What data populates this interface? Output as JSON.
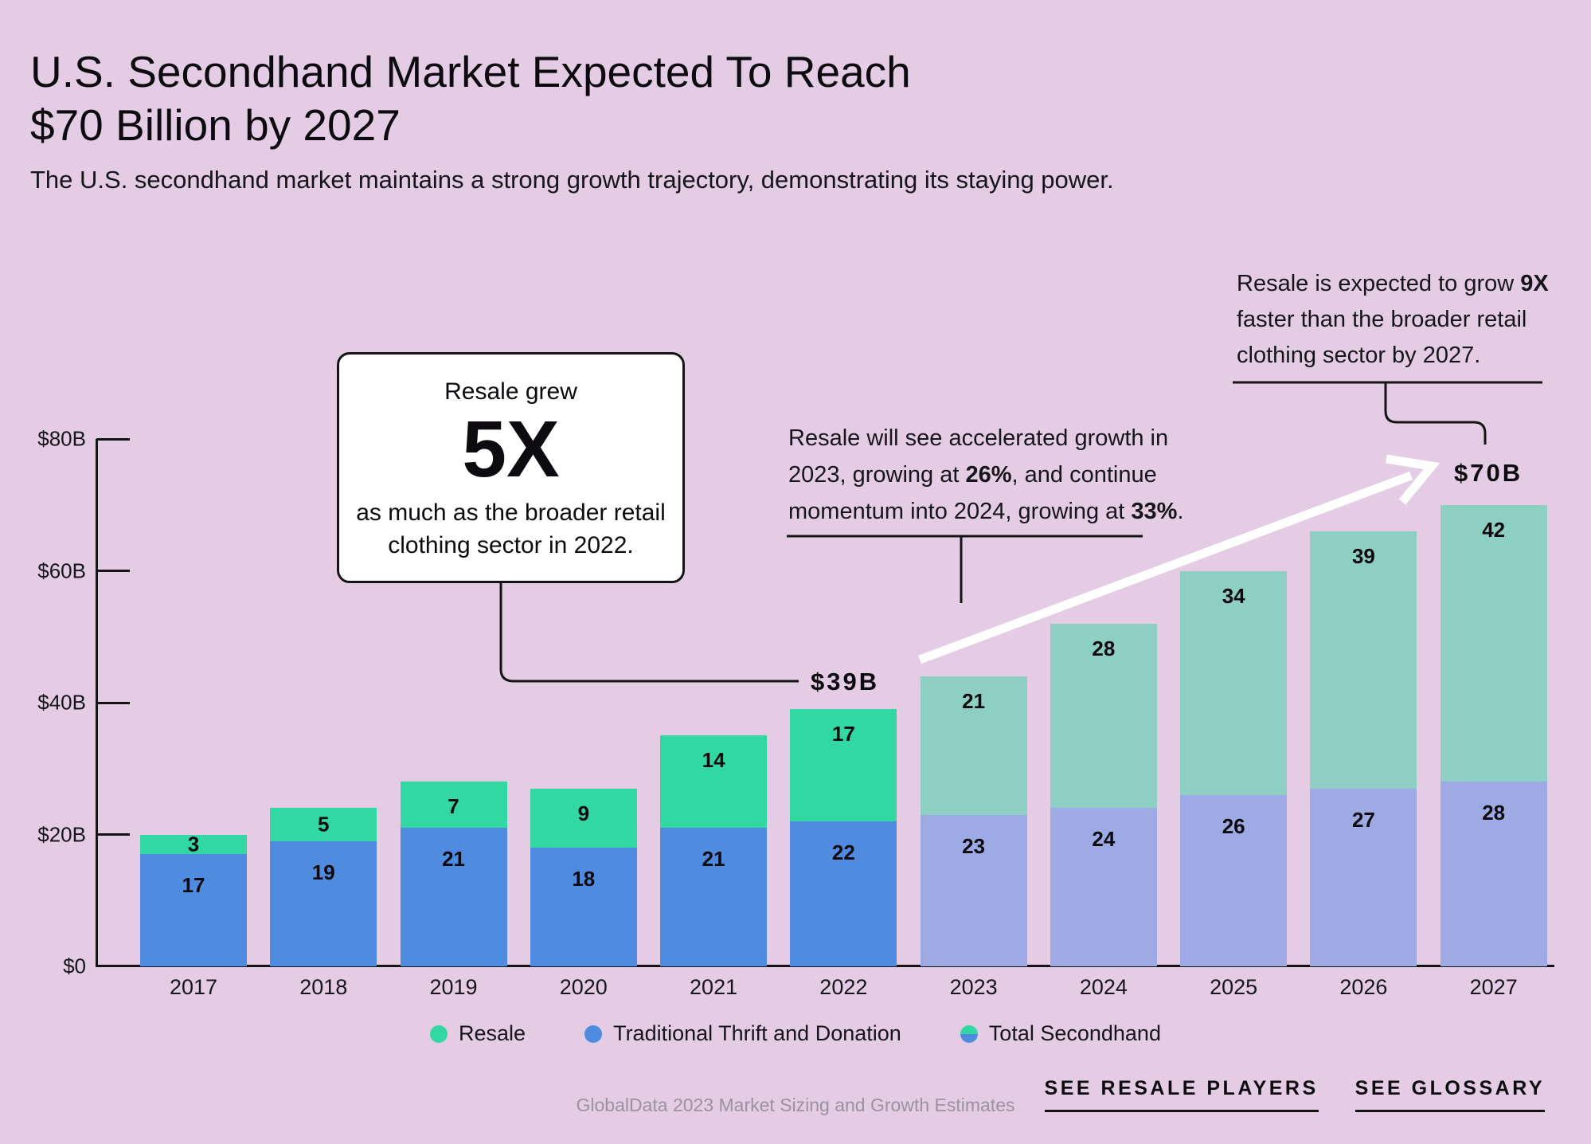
{
  "page": {
    "title_line1": "U.S. Secondhand Market Expected To Reach",
    "title_line2": "$70 Billion by 2027",
    "subtitle": "The U.S. secondhand market maintains a strong growth trajectory, demonstrating its staying power."
  },
  "colors": {
    "background": "#e3cce4",
    "resale": "#31d8a1",
    "thrift": "#4f8cdf",
    "resale_projected": "#8dd0c3",
    "thrift_projected": "#9daae3",
    "axis": "#141414",
    "annotation_box_bg": "#ffffff",
    "arrow": "#ffffff",
    "footer_text": "#9c91a2"
  },
  "chart_data": {
    "type": "bar",
    "stacked": true,
    "title": "U.S. Secondhand Market Expected To Reach $70 Billion by 2027",
    "categories": [
      "2017",
      "2018",
      "2019",
      "2020",
      "2021",
      "2022",
      "2023",
      "2024",
      "2025",
      "2026",
      "2027"
    ],
    "series": [
      {
        "name": "Traditional Thrift and Donation",
        "values": [
          17,
          19,
          21,
          18,
          21,
          22,
          23,
          24,
          26,
          27,
          28
        ]
      },
      {
        "name": "Resale",
        "values": [
          3,
          5,
          7,
          9,
          14,
          17,
          21,
          28,
          34,
          39,
          42
        ]
      }
    ],
    "totals": [
      20,
      24,
      28,
      27,
      35,
      39,
      44,
      52,
      60,
      66,
      70
    ],
    "projected_from": "2023",
    "ylim": [
      0,
      80
    ],
    "y_ticks": [
      {
        "label": "$0",
        "value": 0
      },
      {
        "label": "$20B",
        "value": 20
      },
      {
        "label": "$40B",
        "value": 40
      },
      {
        "label": "$60B",
        "value": 60
      },
      {
        "label": "$80B",
        "value": 80
      }
    ],
    "grid": false,
    "legend_position": "bottom"
  },
  "annotations": {
    "box_5x": {
      "intro": "Resale grew",
      "big": "5X",
      "rest": "as much as the broader retail clothing sector in 2022."
    },
    "growth_note": {
      "parts": [
        {
          "t": "Resale will see accelerated growth in 2023, growing at "
        },
        {
          "t": "26%",
          "b": true
        },
        {
          "t": ", and continue momentum into 2024, growing at "
        },
        {
          "t": "33%",
          "b": true
        },
        {
          "t": "."
        }
      ]
    },
    "nine_x_note": {
      "parts": [
        {
          "t": "Resale is expected to grow "
        },
        {
          "t": "9X",
          "b": true
        },
        {
          "t": " faster than the broader retail clothing sector by 2027."
        }
      ]
    },
    "label_39b": "$39B",
    "label_70b": "$70B"
  },
  "legend": {
    "items": [
      {
        "label": "Resale",
        "swatch": "resale"
      },
      {
        "label": "Traditional Thrift and Donation",
        "swatch": "thrift"
      },
      {
        "label": "Total Secondhand",
        "swatch": "dual"
      }
    ]
  },
  "footer": {
    "source": "GlobalData 2023 Market Sizing and Growth Estimates",
    "links": [
      {
        "label": "SEE RESALE PLAYERS"
      },
      {
        "label": "SEE GLOSSARY"
      }
    ]
  }
}
